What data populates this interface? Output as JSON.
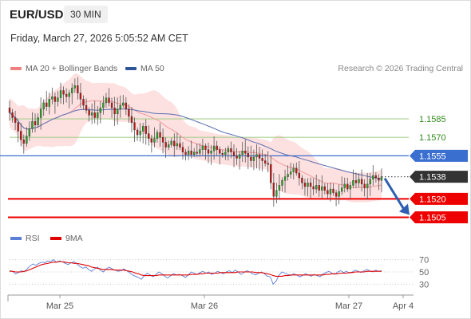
{
  "header": {
    "symbol": "EUR/USD",
    "timeframe": "30 MIN",
    "datetime": "Friday, March 27, 2026 5:05:52 AM CET",
    "copyright": "Research © 2026 Trading Central"
  },
  "legend": {
    "items": [
      {
        "label": "MA 20 + Bollinger Bands",
        "color": "#f08080"
      },
      {
        "label": "MA 50",
        "color": "#2e5597"
      }
    ]
  },
  "rsi_legend": {
    "items": [
      {
        "label": "RSI",
        "color": "#5b7fd6"
      },
      {
        "label": "9MA",
        "color": "#e00000"
      }
    ]
  },
  "colors": {
    "up_candle": "#22aa22",
    "down_candle": "#cc1111",
    "pivot": "#3a6fd0",
    "resistance": "#a8d08d",
    "support": "#ee0000",
    "bollinger_fill": "#fde0e0",
    "ma20": "#f29a9a",
    "ma50": "#5a6fb0",
    "current_price_bg": "#333333"
  },
  "chart_data": [
    {
      "type": "candlestick",
      "title": "",
      "x_ticks": [
        "Mar 25",
        "Mar 26",
        "Mar 27",
        "Apr 4"
      ],
      "ylim": [
        1.1495,
        1.162
      ],
      "levels": [
        {
          "value": 1.1585,
          "label": "1.1585",
          "kind": "resistance"
        },
        {
          "value": 1.157,
          "label": "1.1570",
          "kind": "resistance"
        },
        {
          "value": 1.1555,
          "label": "1.1555",
          "kind": "pivot"
        },
        {
          "value": 1.1538,
          "label": "1.1538",
          "kind": "current"
        },
        {
          "value": 1.152,
          "label": "1.1520",
          "kind": "support"
        },
        {
          "value": 1.1505,
          "label": "1.1505",
          "kind": "support"
        }
      ],
      "forecast": {
        "direction": "down",
        "from": 1.1538,
        "to": 1.1507
      },
      "closes": [
        1.159,
        1.1586,
        1.1582,
        1.1575,
        1.1568,
        1.1565,
        1.1571,
        1.1577,
        1.1583,
        1.158,
        1.1586,
        1.1593,
        1.1598,
        1.1595,
        1.1601,
        1.1603,
        1.1599,
        1.1602,
        1.1608,
        1.1605,
        1.1603,
        1.1606,
        1.161,
        1.1612,
        1.1606,
        1.1601,
        1.1596,
        1.1592,
        1.1588,
        1.159,
        1.1586,
        1.159,
        1.1594,
        1.1598,
        1.1602,
        1.1598,
        1.1594,
        1.1589,
        1.1593,
        1.1596,
        1.1598,
        1.1593,
        1.1587,
        1.1582,
        1.1576,
        1.1572,
        1.1575,
        1.1579,
        1.1573,
        1.1569,
        1.1566,
        1.1569,
        1.1574,
        1.157,
        1.1566,
        1.1562,
        1.1564,
        1.1567,
        1.1563,
        1.1565,
        1.1562,
        1.1558,
        1.1556,
        1.1559,
        1.1556,
        1.1558,
        1.1557,
        1.156,
        1.1563,
        1.156,
        1.1557,
        1.1559,
        1.1563,
        1.156,
        1.1557,
        1.1556,
        1.1558,
        1.1561,
        1.1558,
        1.1555,
        1.1553,
        1.1556,
        1.1559,
        1.1557,
        1.1554,
        1.1551,
        1.1554,
        1.1556,
        1.1553,
        1.1551,
        1.1549,
        1.1548,
        1.1533,
        1.1522,
        1.1527,
        1.1531,
        1.1535,
        1.1538,
        1.154,
        1.1542,
        1.1545,
        1.1541,
        1.1537,
        1.1533,
        1.153,
        1.1533,
        1.153,
        1.1528,
        1.1531,
        1.1527,
        1.153,
        1.1527,
        1.1524,
        1.1528,
        1.1525,
        1.1522,
        1.1526,
        1.1529,
        1.1532,
        1.1528,
        1.1531,
        1.1535,
        1.1533,
        1.1536,
        1.1532,
        1.1529,
        1.1532,
        1.1536,
        1.1539,
        1.1537,
        1.1535,
        1.1538
      ]
    },
    {
      "type": "line",
      "title": "",
      "y_ticks": [
        70,
        50,
        30
      ],
      "ylim": [
        20,
        80
      ],
      "series": [
        {
          "name": "RSI",
          "values": [
            52,
            51,
            47,
            49,
            52,
            50,
            55,
            60,
            63,
            61,
            64,
            66,
            65,
            68,
            67,
            70,
            66,
            68,
            67,
            64,
            62,
            65,
            67,
            63,
            59,
            56,
            58,
            54,
            51,
            55,
            58,
            53,
            50,
            55,
            58,
            55,
            53,
            51,
            52,
            55,
            52,
            49,
            45,
            43,
            41,
            38,
            44,
            48,
            45,
            42,
            46,
            50,
            47,
            43,
            40,
            44,
            47,
            45,
            46,
            44,
            41,
            45,
            50,
            48,
            46,
            49,
            51,
            48,
            50,
            46,
            48,
            51,
            49,
            47,
            50,
            52,
            49,
            53,
            50,
            46,
            49,
            52,
            50,
            47,
            45,
            48,
            50,
            47,
            43,
            42,
            30,
            35,
            45,
            50,
            48,
            46,
            44,
            47,
            45,
            42,
            44,
            47,
            45,
            43,
            46,
            44,
            42,
            47,
            49,
            51,
            48,
            46,
            50,
            52,
            49,
            51,
            48,
            50,
            53,
            51,
            49,
            52,
            54,
            52,
            50,
            53,
            51,
            52
          ]
        },
        {
          "name": "9MA",
          "values": [
            51,
            51,
            50,
            50,
            50,
            51,
            52,
            54,
            56,
            58,
            60,
            62,
            63,
            64,
            65,
            66,
            66,
            67,
            67,
            66,
            65,
            65,
            64,
            64,
            63,
            62,
            61,
            60,
            58,
            57,
            56,
            55,
            54,
            54,
            54,
            54,
            53,
            53,
            53,
            53,
            52,
            51,
            50,
            48,
            47,
            45,
            44,
            44,
            44,
            44,
            44,
            45,
            45,
            45,
            45,
            45,
            45,
            45,
            45,
            45,
            45,
            45,
            46,
            46,
            46,
            47,
            47,
            48,
            48,
            48,
            48,
            48,
            49,
            49,
            49,
            49,
            49,
            49,
            50,
            50,
            50,
            50,
            50,
            50,
            49,
            49,
            49,
            48,
            47,
            46,
            44,
            43,
            43,
            43,
            44,
            44,
            45,
            45,
            45,
            45,
            45,
            45,
            45,
            45,
            45,
            45,
            45,
            45,
            46,
            46,
            47,
            47,
            47,
            48,
            48,
            48,
            49,
            49,
            50,
            50,
            50,
            50,
            51,
            51,
            51,
            51,
            51,
            51
          ]
        }
      ]
    }
  ]
}
